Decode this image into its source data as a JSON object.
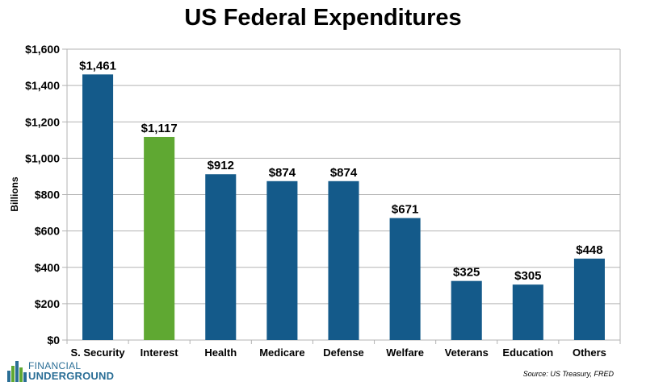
{
  "chart_data": {
    "type": "bar",
    "title": "US Federal Expenditures",
    "ylabel": "Billions",
    "xlabel": "",
    "categories": [
      "S. Security",
      "Interest",
      "Health",
      "Medicare",
      "Defense",
      "Welfare",
      "Veterans",
      "Education",
      "Others"
    ],
    "values": [
      1461,
      1117,
      912,
      874,
      874,
      671,
      325,
      305,
      448
    ],
    "value_labels": [
      "$1,461",
      "$1,117",
      "$912",
      "$874",
      "$874",
      "$671",
      "$325",
      "$305",
      "$448"
    ],
    "ylim": [
      0,
      1600
    ],
    "yticks": [
      0,
      200,
      400,
      600,
      800,
      1000,
      1200,
      1400,
      1600
    ],
    "ytick_labels": [
      "$0",
      "$200",
      "$400",
      "$600",
      "$800",
      "$1,000",
      "$1,200",
      "$1,400",
      "$1,600"
    ],
    "grid": true,
    "legend": "none",
    "bar_color": "#145a8a",
    "highlight_color": "#5fa832",
    "highlight_index": 1
  },
  "footer": {
    "logo_top": "FINANCIAL",
    "logo_bottom": "UNDERGROUND",
    "source": "Source: US Treasury, FRED"
  }
}
